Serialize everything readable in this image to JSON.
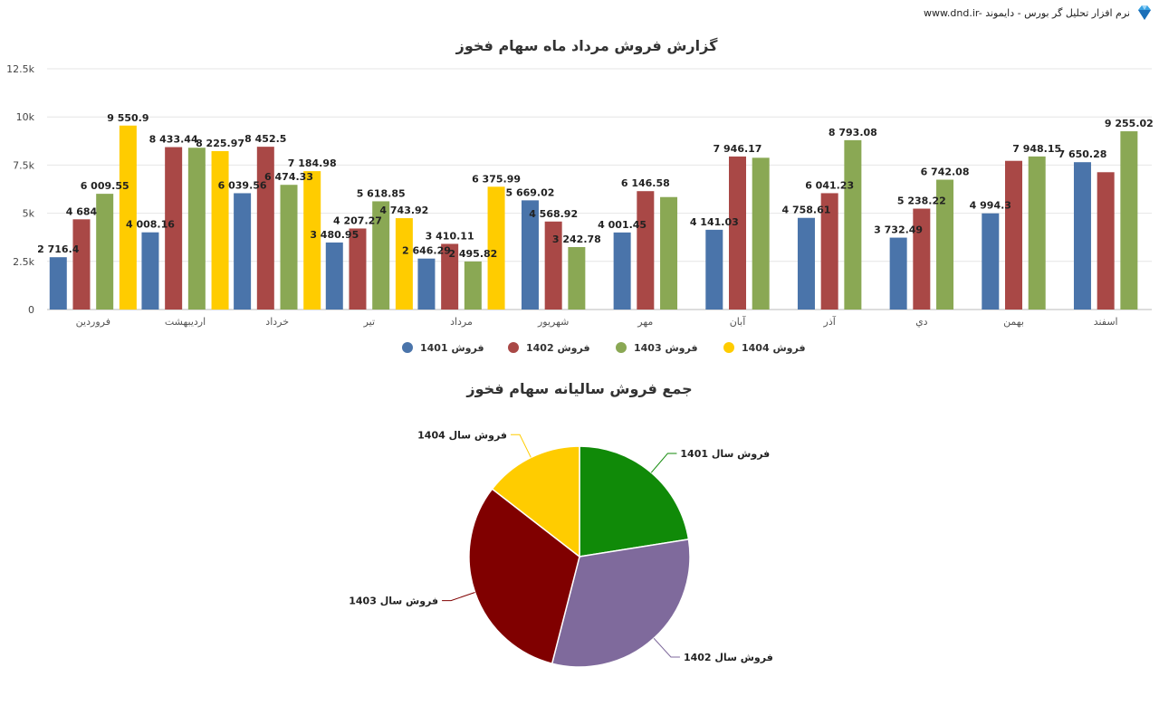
{
  "brand": {
    "text": "www.dnd.ir- نرم افزار تحلیل گر بورس - دایموند",
    "icon": "diamond-logo-icon"
  },
  "chart_data": [
    {
      "type": "bar",
      "title": "گزارش فروش مرداد ماه سهام فخوز",
      "ylim": [
        0,
        12500
      ],
      "yticks": [
        "0",
        "2.5k",
        "5k",
        "7.5k",
        "10k",
        "12.5k"
      ],
      "ytick_values": [
        0,
        2500,
        5000,
        7500,
        10000,
        12500
      ],
      "grid": true,
      "legend_position": "bottom-center",
      "categories": [
        "فروردین",
        "اردیبهشت",
        "خرداد",
        "تیر",
        "مرداد",
        "شهریور",
        "مهر",
        "آبان",
        "آذر",
        "دي",
        "بهمن",
        "اسفند"
      ],
      "series": [
        {
          "name": "فروش 1401",
          "color": "#4a74aa",
          "values": [
            2716.4,
            4008.16,
            6039.56,
            3480.95,
            2646.29,
            5669.02,
            4001.45,
            4141.03,
            4758.61,
            3732.49,
            4994.3,
            7650.28
          ],
          "labels": [
            "2 716.4",
            "4 008.16",
            "6 039.56",
            "3 480.95",
            "2 646.29",
            "5 669.02",
            "4 001.45",
            "4 141.03",
            "4 758.61",
            "3 732.49",
            "4 994.3",
            "7 650.28"
          ]
        },
        {
          "name": "فروش 1402",
          "color": "#a94846",
          "values": [
            4684,
            8433.44,
            8452.5,
            4207.27,
            3410.11,
            4568.92,
            6146.58,
            7946.17,
            6041.23,
            5238.22,
            7720,
            7130
          ],
          "labels": [
            "4 684",
            "8 433.44",
            "8 452.5",
            "4 207.27",
            "3 410.11",
            "4 568.92",
            "6 146.58",
            "7 946.17",
            "6 041.23",
            "5 238.22",
            "",
            ""
          ]
        },
        {
          "name": "فروش 1403",
          "color": "#8aa854",
          "values": [
            6009.55,
            8400,
            6474.33,
            5618.85,
            2495.82,
            3242.78,
            5840,
            7880,
            8793.08,
            6742.08,
            7948.15,
            9255.02
          ],
          "labels": [
            "6 009.55",
            "",
            "6 474.33",
            "5 618.85",
            "2 495.82",
            "3 242.78",
            "",
            "",
            "8 793.08",
            "6 742.08",
            "7 948.15",
            "9 255.02"
          ]
        },
        {
          "name": "فروش 1404",
          "color": "#ffcc00",
          "values": [
            9550.9,
            8225.97,
            7184.98,
            4743.92,
            6375.99,
            null,
            null,
            null,
            null,
            null,
            null,
            null
          ],
          "labels": [
            "9 550.9",
            "8 225.97",
            "7 184.98",
            "4 743.92",
            "6 375.99",
            "",
            "",
            "",
            "",
            "",
            "",
            ""
          ]
        }
      ]
    },
    {
      "type": "pie",
      "title": "جمع فروش سالیانه سهام فخوز",
      "slices": [
        {
          "label": "فروش سال 1401",
          "value": 22.5,
          "color": "#108a08",
          "label_side": "right"
        },
        {
          "label": "فروش سال 1402",
          "value": 31.5,
          "color": "#7f6a9c",
          "label_side": "right"
        },
        {
          "label": "فروش سال 1403",
          "value": 31.5,
          "color": "#800000",
          "label_side": "left"
        },
        {
          "label": "فروش سال 1404",
          "value": 14.5,
          "color": "#ffcc00",
          "label_side": "left"
        }
      ]
    }
  ]
}
